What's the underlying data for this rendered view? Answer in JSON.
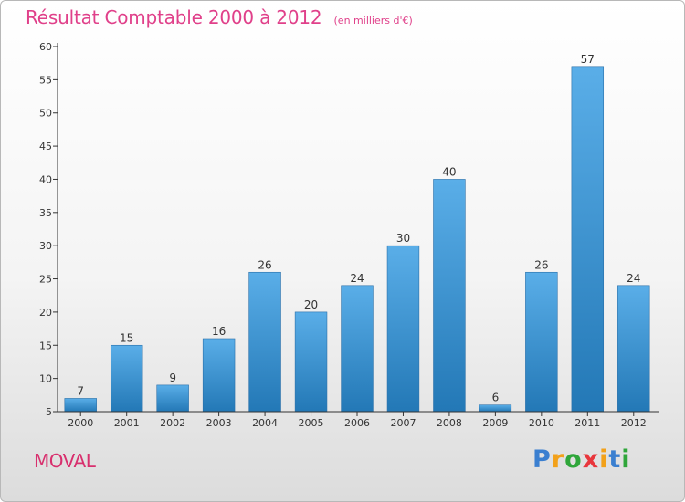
{
  "chart_data": {
    "type": "bar",
    "title": "Résultat Comptable 2000 à 2012",
    "subtitle": "(en milliers d'€)",
    "categories": [
      "2000",
      "2001",
      "2002",
      "2003",
      "2004",
      "2005",
      "2006",
      "2007",
      "2008",
      "2009",
      "2010",
      "2011",
      "2012"
    ],
    "values": [
      7,
      15,
      9,
      16,
      26,
      20,
      24,
      30,
      40,
      6,
      26,
      57,
      24
    ],
    "ylim": [
      5,
      60
    ],
    "yticks": [
      5,
      10,
      15,
      20,
      25,
      30,
      35,
      40,
      45,
      50,
      55,
      60
    ],
    "xlabel": "",
    "ylabel": "",
    "grid": false,
    "legend": "none"
  },
  "commune": "MOVAL",
  "logo": {
    "letters": [
      "P",
      "r",
      "o",
      "x",
      "i",
      "t",
      "i"
    ],
    "colors": [
      "#3a7fd0",
      "#f2a11a",
      "#2fa63a",
      "#e8363c",
      "#f2a11a",
      "#3a7fd0",
      "#2fa63a"
    ]
  },
  "colors": {
    "bar_top": "#5aaee8",
    "bar_bottom": "#2378b6",
    "axis": "#333333",
    "title": "#e0408a"
  }
}
